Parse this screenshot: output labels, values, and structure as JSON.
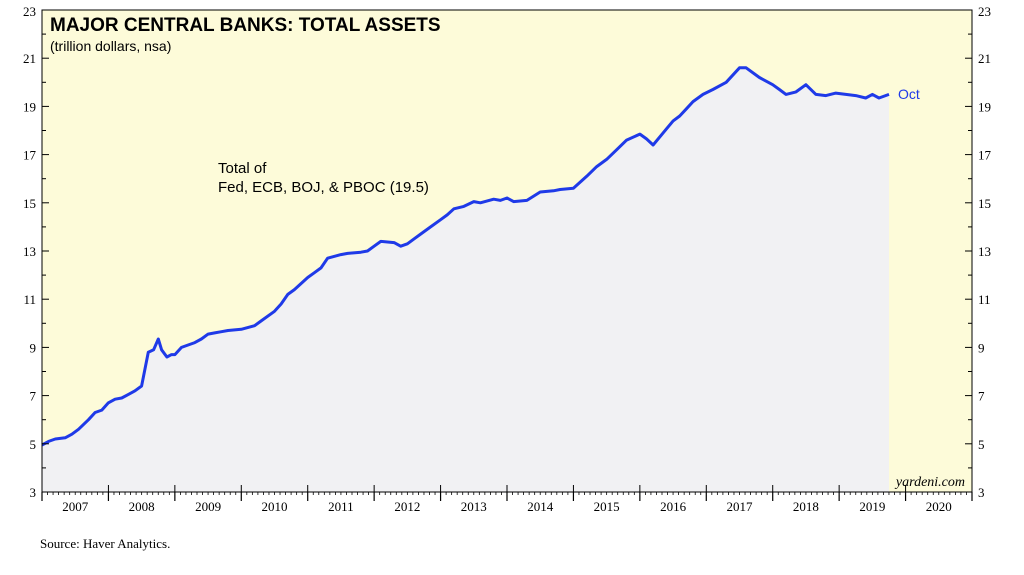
{
  "chart_data": {
    "type": "area",
    "title": "MAJOR CENTRAL BANKS: TOTAL ASSETS",
    "subtitle": "(trillion dollars, nsa)",
    "annotation": [
      "Total of",
      "Fed, ECB, BOJ, & PBOC (19.5)"
    ],
    "end_label": "Oct",
    "watermark": "yardeni.com",
    "years": [
      "2007",
      "2008",
      "2009",
      "2010",
      "2011",
      "2012",
      "2013",
      "2014",
      "2015",
      "2016",
      "2017",
      "2018",
      "2019",
      "2020"
    ],
    "yticks": [
      3,
      5,
      7,
      9,
      11,
      13,
      15,
      17,
      19,
      21,
      23
    ],
    "xlim": [
      2007,
      2021
    ],
    "ylim": [
      3,
      23
    ],
    "grid": false,
    "colors": {
      "plot_bg": "#fdfbd9",
      "area_fill": "#f1f1f3",
      "line": "#1f3ae8"
    },
    "series": [
      {
        "x": [
          2007.0,
          2007.1,
          2007.2,
          2007.35,
          2007.45,
          2007.55,
          2007.7,
          2007.8,
          2007.9,
          2008.0,
          2008.1,
          2008.2,
          2008.3,
          2008.4,
          2008.5,
          2008.6,
          2008.68,
          2008.75,
          2008.8,
          2008.88,
          2008.95,
          2009.0,
          2009.1,
          2009.2,
          2009.3,
          2009.4,
          2009.5,
          2009.6,
          2009.7,
          2009.8,
          2010.0,
          2010.2,
          2010.3,
          2010.5,
          2010.6,
          2010.7,
          2010.8,
          2011.0,
          2011.1,
          2011.2,
          2011.3,
          2011.5,
          2011.6,
          2011.8,
          2011.9,
          2012.0,
          2012.1,
          2012.3,
          2012.4,
          2012.5,
          2012.6,
          2012.7,
          2012.85,
          2013.0,
          2013.1,
          2013.2,
          2013.35,
          2013.5,
          2013.6,
          2013.8,
          2013.9,
          2014.0,
          2014.1,
          2014.3,
          2014.5,
          2014.7,
          2014.8,
          2015.0,
          2015.2,
          2015.35,
          2015.5,
          2015.65,
          2015.8,
          2016.0,
          2016.1,
          2016.2,
          2016.35,
          2016.5,
          2016.6,
          2016.7,
          2016.8,
          2016.95,
          2017.1,
          2017.3,
          2017.5,
          2017.6,
          2017.8,
          2018.0,
          2018.1,
          2018.2,
          2018.35,
          2018.5,
          2018.65,
          2018.8,
          2018.95,
          2019.1,
          2019.25,
          2019.4,
          2019.5,
          2019.6,
          2019.75
        ],
        "y": [
          4.95,
          5.1,
          5.2,
          5.25,
          5.4,
          5.6,
          6.0,
          6.3,
          6.4,
          6.7,
          6.85,
          6.9,
          7.05,
          7.2,
          7.4,
          8.8,
          8.9,
          9.35,
          8.9,
          8.6,
          8.7,
          8.7,
          9.0,
          9.1,
          9.2,
          9.35,
          9.55,
          9.6,
          9.65,
          9.7,
          9.75,
          9.9,
          10.1,
          10.5,
          10.8,
          11.2,
          11.4,
          11.9,
          12.1,
          12.3,
          12.7,
          12.85,
          12.9,
          12.95,
          13.0,
          13.2,
          13.4,
          13.35,
          13.2,
          13.3,
          13.5,
          13.7,
          14.0,
          14.3,
          14.5,
          14.75,
          14.85,
          15.05,
          15.0,
          15.15,
          15.1,
          15.2,
          15.05,
          15.1,
          15.45,
          15.5,
          15.55,
          15.6,
          16.1,
          16.5,
          16.8,
          17.2,
          17.6,
          17.85,
          17.65,
          17.4,
          17.9,
          18.4,
          18.6,
          18.9,
          19.2,
          19.5,
          19.7,
          20.0,
          20.6,
          20.6,
          20.2,
          19.9,
          19.7,
          19.5,
          19.6,
          19.9,
          19.5,
          19.45,
          19.55,
          19.5,
          19.45,
          19.35,
          19.5,
          19.35,
          19.5
        ]
      }
    ]
  },
  "source": "Source: Haver Analytics."
}
